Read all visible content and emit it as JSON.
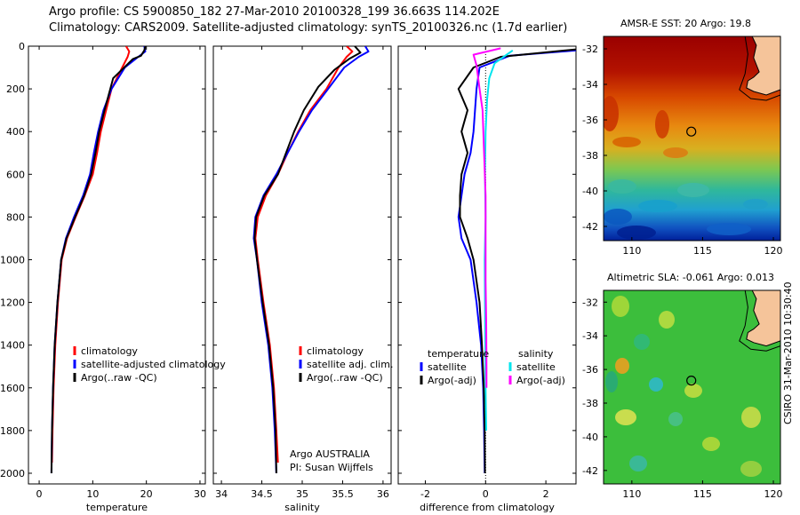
{
  "title": {
    "line1": "Argo profile: CS 5900850_182 27-Mar-2010 20100328_199 36.663S 114.202E",
    "line2": "Climatology: CARS2009. Satellite-adjusted climatology: synTS_20100326.nc (1.7d earlier)"
  },
  "colors": {
    "climatology": "#ff0000",
    "satellite": "#0000ff",
    "argo": "#000000",
    "salinity_satellite": "#00e5ee",
    "salinity_argo": "#ff00ff",
    "land": "#f5c49a"
  },
  "depth_ticks": [
    "0",
    "200",
    "400",
    "600",
    "800",
    "1000",
    "1200",
    "1400",
    "1600",
    "1800",
    "2000"
  ],
  "chart_data": [
    {
      "type": "line",
      "xlabel": "temperature",
      "xticks": [
        "0",
        "10",
        "20",
        "30"
      ],
      "xlim": [
        -2,
        31
      ],
      "ylim": [
        2050,
        0
      ],
      "legend": [
        "climatology",
        "satellite-adjusted climatology",
        "Argo(..raw -QC)"
      ],
      "series": [
        {
          "name": "climatology",
          "color": "red",
          "x": [
            16.2,
            16.8,
            16.5,
            15.5,
            13.5,
            12.5,
            11.5,
            10.8,
            10.0,
            8.5,
            6.8,
            5.2,
            4.2,
            3.5,
            3.0,
            2.7,
            2.5,
            2.4
          ],
          "depth": [
            0,
            25,
            50,
            100,
            200,
            300,
            400,
            500,
            600,
            700,
            800,
            900,
            1000,
            1200,
            1400,
            1600,
            1800,
            1950
          ]
        },
        {
          "name": "satellite-adjusted climatology",
          "color": "blue",
          "x": [
            19.6,
            19.8,
            18.5,
            16.0,
            13.5,
            12.0,
            11.0,
            10.2,
            9.5,
            8.2,
            6.5,
            5.0,
            4.1,
            3.4,
            2.9,
            2.6,
            2.4,
            2.3
          ],
          "depth": [
            0,
            25,
            50,
            100,
            200,
            300,
            400,
            500,
            600,
            700,
            800,
            900,
            1000,
            1200,
            1400,
            1600,
            1800,
            2000
          ]
        },
        {
          "name": "Argo(..raw -QC)",
          "color": "black",
          "x": [
            19.8,
            19.6,
            19.0,
            17.5,
            13.8,
            12.2,
            11.2,
            10.5,
            9.7,
            8.4,
            6.7,
            5.1,
            4.1,
            3.4,
            2.9,
            2.6,
            2.4,
            2.3
          ],
          "depth": [
            0,
            20,
            45,
            60,
            150,
            300,
            400,
            500,
            600,
            700,
            800,
            900,
            1000,
            1200,
            1400,
            1600,
            1800,
            2000
          ]
        }
      ]
    },
    {
      "type": "line",
      "xlabel": "salinity",
      "xticks": [
        "34",
        "34.5",
        "35",
        "35.5",
        "36"
      ],
      "xlim": [
        33.9,
        36.1
      ],
      "ylim": [
        2050,
        0
      ],
      "legend": [
        "climatology",
        "satellite adj. clim.",
        "Argo(..raw -QC)"
      ],
      "annotation": [
        "Argo AUSTRALIA",
        "PI: Susan Wijffels"
      ],
      "series": [
        {
          "name": "climatology",
          "color": "red",
          "x": [
            35.55,
            35.62,
            35.55,
            35.45,
            35.3,
            35.1,
            34.95,
            34.82,
            34.7,
            34.55,
            34.45,
            34.42,
            34.45,
            34.52,
            34.6,
            34.65,
            34.68,
            34.7
          ],
          "depth": [
            0,
            25,
            50,
            100,
            200,
            300,
            400,
            500,
            600,
            700,
            800,
            900,
            1000,
            1200,
            1400,
            1600,
            1800,
            1950
          ]
        },
        {
          "name": "satellite adj. clim.",
          "color": "blue",
          "x": [
            35.78,
            35.82,
            35.7,
            35.52,
            35.32,
            35.12,
            34.96,
            34.82,
            34.68,
            34.52,
            34.42,
            34.4,
            34.44,
            34.5,
            34.58,
            34.63,
            34.66,
            34.68
          ],
          "depth": [
            0,
            25,
            50,
            100,
            200,
            300,
            400,
            500,
            600,
            700,
            800,
            900,
            1000,
            1200,
            1400,
            1600,
            1800,
            2000
          ]
        },
        {
          "name": "Argo(..raw -QC)",
          "color": "black",
          "x": [
            35.65,
            35.72,
            35.58,
            35.4,
            35.2,
            35.02,
            34.9,
            34.8,
            34.7,
            34.53,
            34.43,
            34.41,
            34.44,
            34.51,
            34.59,
            34.64,
            34.67,
            34.68
          ],
          "depth": [
            0,
            30,
            60,
            110,
            190,
            300,
            400,
            500,
            600,
            700,
            800,
            900,
            1000,
            1200,
            1400,
            1600,
            1800,
            2000
          ]
        }
      ]
    },
    {
      "type": "line",
      "xlabel": "difference from climatology",
      "xticks": [
        "-2",
        "0",
        "2"
      ],
      "xlim": [
        -2.9,
        3.0
      ],
      "ylim": [
        2050,
        0
      ],
      "legend_left": {
        "title": "temperature",
        "items": [
          "satellite",
          "Argo(-adj)"
        ]
      },
      "legend_right": {
        "title": "salinity",
        "items": [
          "satellite",
          "Argo(-adj)"
        ]
      },
      "series": [
        {
          "name": "temperature satellite",
          "color": "blue",
          "x": [
            3.0,
            0.8,
            -0.2,
            -0.3,
            -0.35,
            -0.4,
            -0.5,
            -0.7,
            -0.8,
            -0.9,
            -0.8,
            -0.5,
            -0.3,
            -0.15,
            -0.08,
            -0.05,
            -0.03
          ],
          "depth": [
            20,
            45,
            100,
            200,
            300,
            400,
            500,
            600,
            700,
            800,
            900,
            1000,
            1200,
            1400,
            1600,
            1800,
            2000
          ]
        },
        {
          "name": "temperature Argo(-adj)",
          "color": "black",
          "x": [
            3.0,
            0.5,
            -0.4,
            -0.9,
            -0.6,
            -0.8,
            -0.6,
            -0.8,
            -0.85,
            -0.85,
            -0.6,
            -0.4,
            -0.2,
            -0.12,
            -0.06,
            -0.03,
            -0.02
          ],
          "depth": [
            15,
            50,
            100,
            200,
            300,
            400,
            500,
            600,
            700,
            800,
            900,
            1000,
            1200,
            1400,
            1600,
            1800,
            2000
          ]
        },
        {
          "name": "salinity satellite",
          "color": "cyan",
          "x": [
            0.9,
            0.6,
            0.3,
            0.12,
            0.05,
            0.0,
            -0.02,
            0.0,
            -0.03,
            -0.02,
            -0.01,
            0.0,
            0.02
          ],
          "depth": [
            20,
            50,
            80,
            150,
            250,
            400,
            600,
            800,
            1000,
            1200,
            1400,
            1600,
            1800
          ]
        },
        {
          "name": "salinity Argo(-adj)",
          "color": "magenta",
          "x": [
            0.5,
            -0.4,
            -0.3,
            -0.2,
            -0.1,
            -0.05,
            0.0,
            0.0,
            0.0,
            0.02,
            0.03,
            0.03
          ],
          "depth": [
            10,
            40,
            90,
            200,
            300,
            500,
            700,
            900,
            1100,
            1300,
            1500,
            1600
          ]
        }
      ]
    },
    {
      "type": "heatmap",
      "title": "AMSR-E SST: 20  Argo: 19.8",
      "xticks": [
        "110",
        "115",
        "120"
      ],
      "yticks": [
        "-32",
        "-34",
        "-36",
        "-38",
        "-40",
        "-42"
      ],
      "xlim": [
        108,
        120.5
      ],
      "ylim": [
        -42.8,
        -31.3
      ],
      "marker": {
        "lon": 114.2,
        "lat": -36.66
      }
    },
    {
      "type": "heatmap",
      "title": "Altimetric SLA: -0.061  Argo: 0.013",
      "xticks": [
        "110",
        "115",
        "120"
      ],
      "yticks": [
        "-32",
        "-34",
        "-36",
        "-38",
        "-40",
        "-42"
      ],
      "xlim": [
        108,
        120.5
      ],
      "ylim": [
        -42.8,
        -31.3
      ],
      "marker": {
        "lon": 114.2,
        "lat": -36.66
      }
    }
  ],
  "credit": "CSIRO 31-Mar-2010 10:30:40"
}
